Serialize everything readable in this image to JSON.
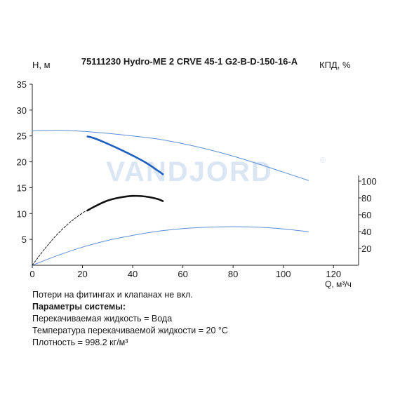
{
  "chart_data": {
    "type": "line",
    "title": "75111230 Hydro-ME 2 CRVE 45-1 G2-B-D-150-16-A",
    "xlabel": "Q, м³/ч",
    "ylabel_left": "H, м",
    "ylabel_right": "КПД, %",
    "watermark": "VANDJORD",
    "watermark_mark": "®",
    "xlim": [
      0,
      130
    ],
    "ylim_left": [
      0,
      35
    ],
    "ylim_right": [
      0,
      120
    ],
    "x_ticks": [
      0,
      20,
      40,
      60,
      80,
      100,
      120
    ],
    "y_ticks_left": [
      5,
      10,
      15,
      20,
      25,
      30,
      35
    ],
    "y_ticks_right": [
      20,
      40,
      60,
      80,
      100
    ],
    "grid": false,
    "series": [
      {
        "axis": "left",
        "style": "thin",
        "color": "#5b8fd6",
        "x": [
          0,
          10,
          20,
          30,
          40,
          50,
          60,
          70,
          80,
          90,
          100,
          110
        ],
        "y": [
          26,
          26.1,
          25.9,
          25.5,
          25.0,
          24.4,
          23.5,
          22.4,
          21.1,
          19.6,
          18.0,
          16.4
        ]
      },
      {
        "axis": "left",
        "style": "thick",
        "color": "#1f5fc0",
        "x": [
          22,
          25,
          30,
          35,
          40,
          45,
          50,
          52
        ],
        "y": [
          24.9,
          24.5,
          23.5,
          22.4,
          21.2,
          19.9,
          18.3,
          17.6
        ]
      },
      {
        "axis": "right",
        "style": "thin",
        "color": "#5b8fd6",
        "x": [
          0,
          10,
          20,
          30,
          40,
          50,
          60,
          70,
          80,
          90,
          100,
          110
        ],
        "y": [
          0,
          11.5,
          21.5,
          29.5,
          35.5,
          40.3,
          43.5,
          45.2,
          45.8,
          45.2,
          43.2,
          39.8
        ]
      },
      {
        "axis": "left",
        "style": "dashed",
        "color": "#1a1a1a",
        "x": [
          0,
          5,
          10,
          15,
          20,
          22
        ],
        "y": [
          0,
          3.2,
          6.0,
          8.3,
          10.1,
          10.6
        ]
      },
      {
        "axis": "left",
        "style": "thick",
        "color": "#111111",
        "x": [
          22,
          25,
          30,
          35,
          40,
          45,
          50,
          52
        ],
        "y": [
          10.6,
          11.4,
          12.5,
          13.1,
          13.4,
          13.3,
          12.8,
          12.4
        ]
      }
    ]
  },
  "notes": {
    "line1": "Потери на фитингах и клапанах не вкл.",
    "heading": "Параметры системы:",
    "liquid": "Перекачиваемая жидкость = Вода",
    "temperature": "Температура перекачиваемой жидкости = 20 °C",
    "density": "Плотность = 998.2 кг/м³"
  }
}
